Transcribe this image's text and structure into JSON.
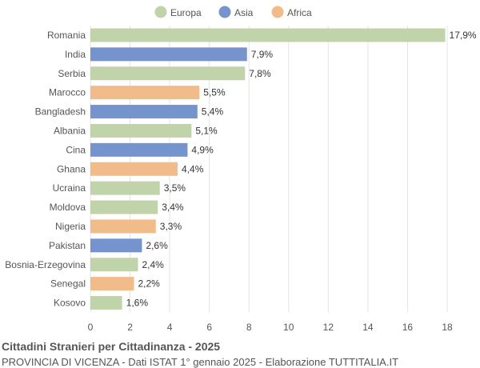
{
  "chart_data": {
    "type": "bar",
    "orientation": "horizontal",
    "title": "Cittadini Stranieri per Cittadinanza - 2025",
    "subtitle": "PROVINCIA DI VICENZA - Dati ISTAT 1° gennaio 2025 - Elaborazione TUTTITALIA.IT",
    "xlim": [
      0,
      18
    ],
    "xticks": [
      0,
      2,
      4,
      6,
      8,
      10,
      12,
      14,
      16,
      18
    ],
    "grid": true,
    "legend_position": "top-center",
    "legend": [
      {
        "name": "Europa",
        "color": "#c1d4a9"
      },
      {
        "name": "Asia",
        "color": "#7593cc"
      },
      {
        "name": "Africa",
        "color": "#f2bb8a"
      }
    ],
    "categories": [
      "Romania",
      "India",
      "Serbia",
      "Marocco",
      "Bangladesh",
      "Albania",
      "Cina",
      "Ghana",
      "Ucraina",
      "Moldova",
      "Nigeria",
      "Pakistan",
      "Bosnia-Erzegovina",
      "Senegal",
      "Kosovo"
    ],
    "values": [
      17.9,
      7.9,
      7.8,
      5.5,
      5.4,
      5.1,
      4.9,
      4.4,
      3.5,
      3.4,
      3.3,
      2.6,
      2.4,
      2.2,
      1.6
    ],
    "value_labels": [
      "17,9%",
      "7,9%",
      "7,8%",
      "5,5%",
      "5,4%",
      "5,1%",
      "4,9%",
      "4,4%",
      "3,5%",
      "3,4%",
      "3,3%",
      "2,6%",
      "2,4%",
      "2,2%",
      "1,6%"
    ],
    "groups": [
      "Europa",
      "Asia",
      "Europa",
      "Africa",
      "Asia",
      "Europa",
      "Asia",
      "Africa",
      "Europa",
      "Europa",
      "Africa",
      "Asia",
      "Europa",
      "Africa",
      "Europa"
    ]
  }
}
